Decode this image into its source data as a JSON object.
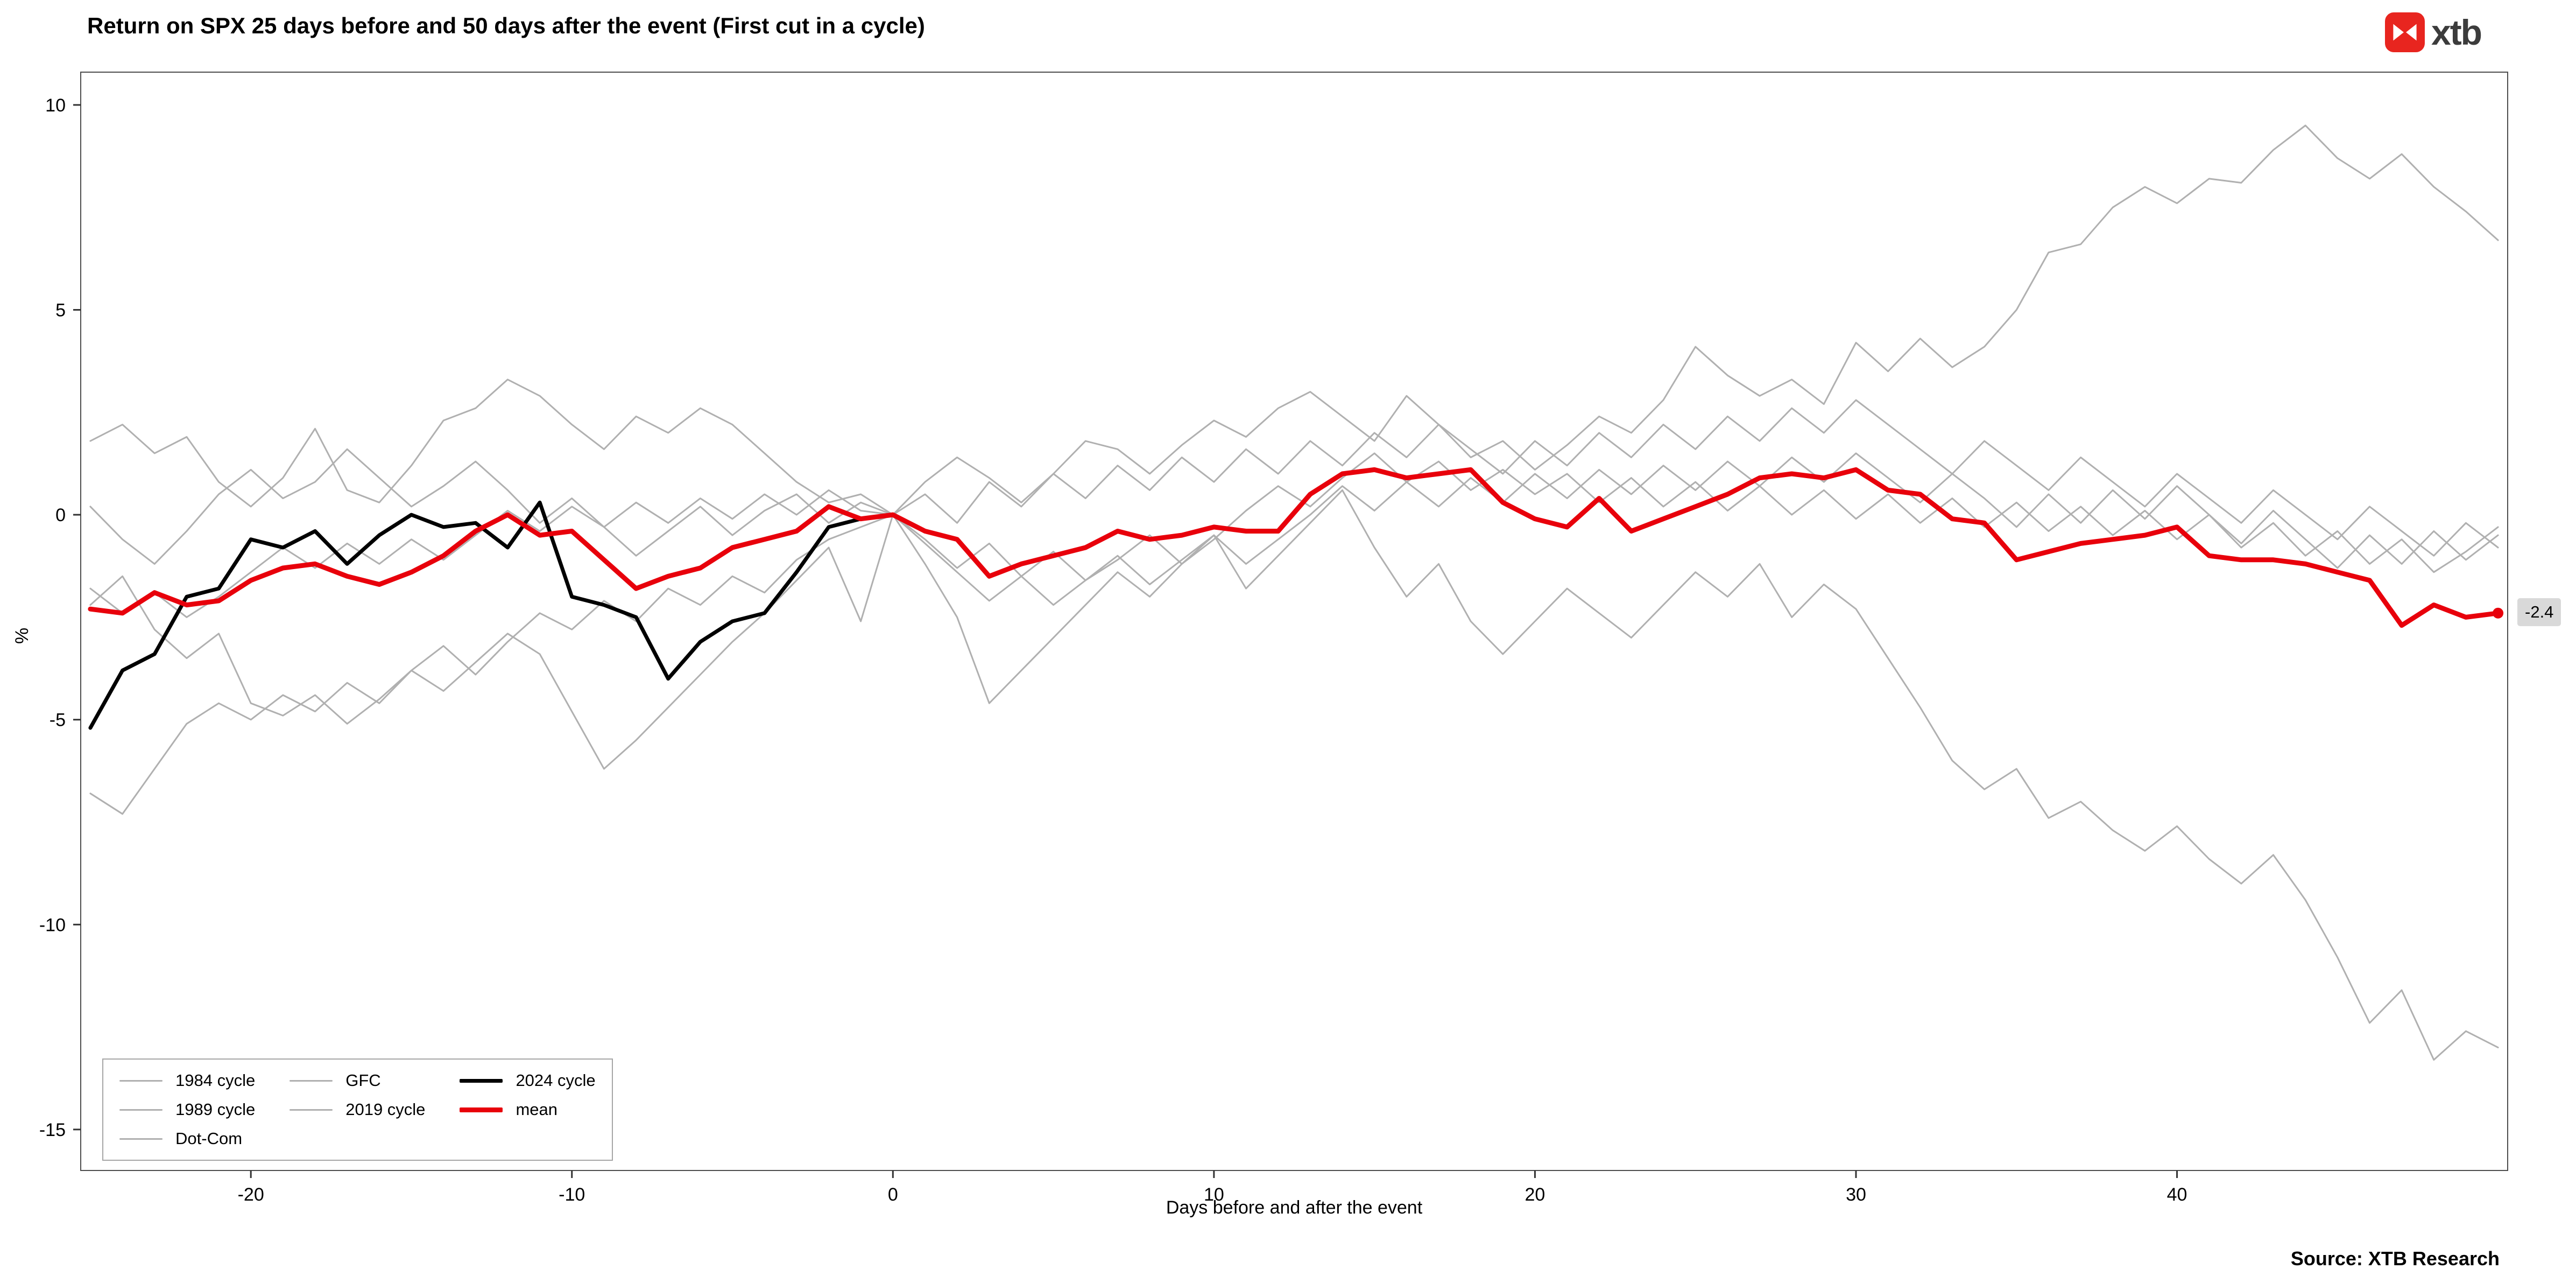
{
  "header": {
    "logo_text": "xtb",
    "logo_color": "#e8251f"
  },
  "footer": {
    "source": "Source: XTB Research"
  },
  "legend": {
    "columns": [
      [
        {
          "label": "1984 cycle",
          "color": "#b0b0b0",
          "thickness": 3
        },
        {
          "label": "1989 cycle",
          "color": "#b0b0b0",
          "thickness": 3
        },
        {
          "label": "Dot-Com",
          "color": "#b0b0b0",
          "thickness": 3
        }
      ],
      [
        {
          "label": "GFC",
          "color": "#b0b0b0",
          "thickness": 3
        },
        {
          "label": "2019 cycle",
          "color": "#b0b0b0",
          "thickness": 3
        }
      ],
      [
        {
          "label": "2024 cycle",
          "color": "#000000",
          "thickness": 7
        },
        {
          "label": "mean",
          "color": "#e8000b",
          "thickness": 9
        }
      ]
    ]
  },
  "chart_data": {
    "type": "line",
    "title": "Return on SPX 25 days before and 50 days after the event (First cut in a cycle)",
    "xlabel": "Days before and after the event",
    "ylabel": "%",
    "xlim": [
      -25.3,
      50.3
    ],
    "ylim": [
      -16,
      10.8
    ],
    "grid": false,
    "legend_position": "bottom-left",
    "x_ticks": [
      {
        "value": -20,
        "label": "-20"
      },
      {
        "value": -10,
        "label": "-10"
      },
      {
        "value": 0,
        "label": "0"
      },
      {
        "value": 10,
        "label": "10"
      },
      {
        "value": 20,
        "label": "20"
      },
      {
        "value": 30,
        "label": "30"
      },
      {
        "value": 40,
        "label": "40"
      }
    ],
    "y_ticks": [
      {
        "value": 10,
        "label": "10"
      },
      {
        "value": 5,
        "label": "5"
      },
      {
        "value": 0,
        "label": "0"
      },
      {
        "value": -5,
        "label": "-5"
      },
      {
        "value": -10,
        "label": "-10"
      },
      {
        "value": -15,
        "label": "-15"
      }
    ],
    "end_label": {
      "series": "mean",
      "value": -2.4,
      "text": "-2.4"
    },
    "x": [
      -25,
      -24,
      -23,
      -22,
      -21,
      -20,
      -19,
      -18,
      -17,
      -16,
      -15,
      -14,
      -13,
      -12,
      -11,
      -10,
      -9,
      -8,
      -7,
      -6,
      -5,
      -4,
      -3,
      -2,
      -1,
      0,
      1,
      2,
      3,
      4,
      5,
      6,
      7,
      8,
      9,
      10,
      11,
      12,
      13,
      14,
      15,
      16,
      17,
      18,
      19,
      20,
      21,
      22,
      23,
      24,
      25,
      26,
      27,
      28,
      29,
      30,
      31,
      32,
      33,
      34,
      35,
      36,
      37,
      38,
      39,
      40,
      41,
      42,
      43,
      44,
      45,
      46,
      47,
      48,
      49,
      50
    ],
    "series": [
      {
        "name": "1984 cycle",
        "color": "#b0b0b0",
        "width": 3,
        "values": [
          1.8,
          2.2,
          1.5,
          1.9,
          0.8,
          0.2,
          0.9,
          2.1,
          0.6,
          0.3,
          1.2,
          2.3,
          2.6,
          3.3,
          2.9,
          2.2,
          1.6,
          2.4,
          2.0,
          2.6,
          2.2,
          1.5,
          0.8,
          0.3,
          0.5,
          0.0,
          0.8,
          1.4,
          0.9,
          0.3,
          1.0,
          1.8,
          1.6,
          1.0,
          1.7,
          2.3,
          1.9,
          2.6,
          3.0,
          2.4,
          1.8,
          2.9,
          2.2,
          1.4,
          1.8,
          1.1,
          1.7,
          2.4,
          2.0,
          2.8,
          4.1,
          3.4,
          2.9,
          3.3,
          2.7,
          4.2,
          3.5,
          4.3,
          3.6,
          4.1,
          5.0,
          6.4,
          6.6,
          7.5,
          8.0,
          7.6,
          8.2,
          8.1,
          8.9,
          9.5,
          8.7,
          8.2,
          8.8,
          8.0,
          7.4,
          6.7
        ]
      },
      {
        "name": "1989 cycle",
        "color": "#b0b0b0",
        "width": 3,
        "values": [
          0.2,
          -0.6,
          -1.2,
          -0.4,
          0.5,
          1.1,
          0.4,
          0.8,
          1.6,
          0.9,
          0.2,
          0.7,
          1.3,
          0.6,
          -0.2,
          0.4,
          -0.3,
          -1.0,
          -0.4,
          0.2,
          -0.5,
          0.1,
          0.5,
          -0.2,
          0.3,
          0.0,
          -0.6,
          -1.3,
          -0.7,
          -1.5,
          -0.9,
          -1.6,
          -1.1,
          -0.5,
          -1.2,
          -0.6,
          0.1,
          0.7,
          0.2,
          0.9,
          1.5,
          0.8,
          1.3,
          0.6,
          1.1,
          0.5,
          1.0,
          0.3,
          0.9,
          0.2,
          0.8,
          0.1,
          0.7,
          0.0,
          0.6,
          -0.1,
          0.5,
          -0.2,
          0.4,
          -0.3,
          0.3,
          -0.4,
          0.2,
          -0.5,
          0.1,
          -0.6,
          0.0,
          -0.8,
          -0.2,
          -1.0,
          -0.4,
          -1.2,
          -0.6,
          -1.4,
          -0.9,
          -0.3
        ]
      },
      {
        "name": "Dot-Com",
        "color": "#b0b0b0",
        "width": 3,
        "values": [
          -2.2,
          -1.5,
          -2.8,
          -3.5,
          -2.9,
          -4.6,
          -4.9,
          -4.4,
          -5.1,
          -4.5,
          -3.8,
          -4.3,
          -3.6,
          -2.9,
          -3.4,
          -4.8,
          -6.2,
          -5.5,
          -4.7,
          -3.9,
          -3.1,
          -2.4,
          -1.6,
          -0.8,
          -2.6,
          0.0,
          -1.2,
          -2.5,
          -4.6,
          -3.8,
          -3.0,
          -2.2,
          -1.4,
          -2.0,
          -1.2,
          -0.5,
          -1.8,
          -1.0,
          -0.2,
          0.6,
          -0.8,
          -2.0,
          -1.2,
          -2.6,
          -3.4,
          -2.6,
          -1.8,
          -2.4,
          -3.0,
          -2.2,
          -1.4,
          -2.0,
          -1.2,
          -2.5,
          -1.7,
          -2.3,
          -3.5,
          -4.7,
          -6.0,
          -6.7,
          -6.2,
          -7.4,
          -7.0,
          -7.7,
          -8.2,
          -7.6,
          -8.4,
          -9.0,
          -8.3,
          -9.4,
          -10.8,
          -12.4,
          -11.6,
          -13.3,
          -12.6,
          -13.0
        ]
      },
      {
        "name": "GFC",
        "color": "#b0b0b0",
        "width": 3,
        "values": [
          -6.8,
          -7.3,
          -6.2,
          -5.1,
          -4.6,
          -5.0,
          -4.4,
          -4.8,
          -4.1,
          -4.6,
          -3.8,
          -3.2,
          -3.9,
          -3.1,
          -2.4,
          -2.8,
          -2.1,
          -2.6,
          -1.8,
          -2.2,
          -1.5,
          -1.9,
          -1.1,
          -0.6,
          -0.3,
          0.0,
          0.5,
          -0.2,
          0.8,
          0.2,
          1.0,
          0.4,
          1.2,
          0.6,
          1.4,
          0.8,
          1.6,
          1.0,
          1.8,
          1.2,
          2.0,
          1.4,
          2.2,
          1.6,
          1.0,
          1.8,
          1.2,
          2.0,
          1.4,
          2.2,
          1.6,
          2.4,
          1.8,
          2.6,
          2.0,
          2.8,
          2.2,
          1.6,
          1.0,
          1.8,
          1.2,
          0.6,
          1.4,
          0.8,
          0.2,
          1.0,
          0.4,
          -0.2,
          0.6,
          0.0,
          -0.6,
          0.2,
          -0.4,
          -1.0,
          -0.2,
          -0.8
        ]
      },
      {
        "name": "2019 cycle",
        "color": "#b0b0b0",
        "width": 3,
        "values": [
          -1.8,
          -2.4,
          -1.9,
          -2.5,
          -2.0,
          -1.4,
          -0.8,
          -1.3,
          -0.7,
          -1.2,
          -0.6,
          -1.1,
          -0.5,
          0.1,
          -0.4,
          0.2,
          -0.3,
          0.3,
          -0.2,
          0.4,
          -0.1,
          0.5,
          0.0,
          0.6,
          0.1,
          0.0,
          -0.7,
          -1.4,
          -2.1,
          -1.5,
          -2.2,
          -1.6,
          -1.0,
          -1.7,
          -1.1,
          -0.5,
          -1.2,
          -0.6,
          0.0,
          0.7,
          0.1,
          0.8,
          0.2,
          0.9,
          0.3,
          1.0,
          0.4,
          1.1,
          0.5,
          1.2,
          0.6,
          1.3,
          0.7,
          1.4,
          0.8,
          1.5,
          0.9,
          0.3,
          1.0,
          0.4,
          -0.3,
          0.5,
          -0.2,
          0.6,
          -0.1,
          0.7,
          0.0,
          -0.7,
          0.1,
          -0.6,
          -1.3,
          -0.5,
          -1.2,
          -0.4,
          -1.1,
          -0.5
        ]
      },
      {
        "name": "2024 cycle",
        "color": "#000000",
        "width": 7,
        "values": [
          -5.2,
          -3.8,
          -3.4,
          -2.0,
          -1.8,
          -0.6,
          -0.8,
          -0.4,
          -1.2,
          -0.5,
          0.0,
          -0.3,
          -0.2,
          -0.8,
          0.3,
          -2.0,
          -2.2,
          -2.5,
          -4.0,
          -3.1,
          -2.6,
          -2.4,
          -1.4,
          -0.3,
          -0.1,
          0.0
        ]
      },
      {
        "name": "mean",
        "color": "#e8000b",
        "width": 9,
        "values": [
          -2.3,
          -2.4,
          -1.9,
          -2.2,
          -2.1,
          -1.6,
          -1.3,
          -1.2,
          -1.5,
          -1.7,
          -1.4,
          -1.0,
          -0.4,
          0.0,
          -0.5,
          -0.4,
          -1.1,
          -1.8,
          -1.5,
          -1.3,
          -0.8,
          -0.6,
          -0.4,
          0.2,
          -0.1,
          0.0,
          -0.4,
          -0.6,
          -1.5,
          -1.2,
          -1.0,
          -0.8,
          -0.4,
          -0.6,
          -0.5,
          -0.3,
          -0.4,
          -0.4,
          0.5,
          1.0,
          1.1,
          0.9,
          1.0,
          1.1,
          0.3,
          -0.1,
          -0.3,
          0.4,
          -0.4,
          -0.1,
          0.2,
          0.5,
          0.9,
          1.0,
          0.9,
          1.1,
          0.6,
          0.5,
          -0.1,
          -0.2,
          -1.1,
          -0.9,
          -0.7,
          -0.6,
          -0.5,
          -0.3,
          -1.0,
          -1.1,
          -1.1,
          -1.2,
          -1.4,
          -1.6,
          -2.7,
          -2.2,
          -2.5,
          -2.4
        ]
      }
    ]
  }
}
